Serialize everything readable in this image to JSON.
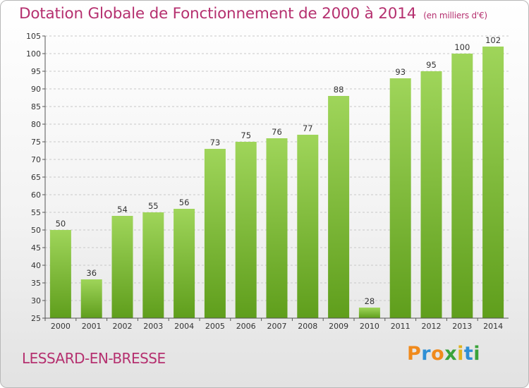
{
  "chart_data": {
    "type": "bar",
    "title": "Dotation Globale de Fonctionnement de 2000 à 2014",
    "subtitle": "(en milliers d'€)",
    "categories": [
      "2000",
      "2001",
      "2002",
      "2003",
      "2004",
      "2005",
      "2006",
      "2007",
      "2008",
      "2009",
      "2010",
      "2011",
      "2012",
      "2013",
      "2014"
    ],
    "values": [
      50,
      36,
      54,
      55,
      56,
      73,
      75,
      76,
      77,
      88,
      28,
      93,
      95,
      100,
      102
    ],
    "ylim": [
      25,
      105
    ],
    "yticks": [
      25,
      30,
      35,
      40,
      45,
      50,
      55,
      60,
      65,
      70,
      75,
      80,
      85,
      90,
      95,
      100,
      105
    ],
    "grid": true,
    "legend": "none",
    "bar_color_top": "#9fd55a",
    "bar_color_bottom": "#5f9e1c"
  },
  "footer": {
    "commune": "LESSARD-EN-BRESSE",
    "logo_text": "Proxiti",
    "logo_colors": [
      "#f08a1c",
      "#2f8fd5",
      "#f08a1c",
      "#3aa33a",
      "#e0b31e",
      "#2f8fd5",
      "#3aa33a"
    ]
  },
  "colors": {
    "title": "#b5306f",
    "grid": "#c8c8c8",
    "axis": "#555555"
  }
}
